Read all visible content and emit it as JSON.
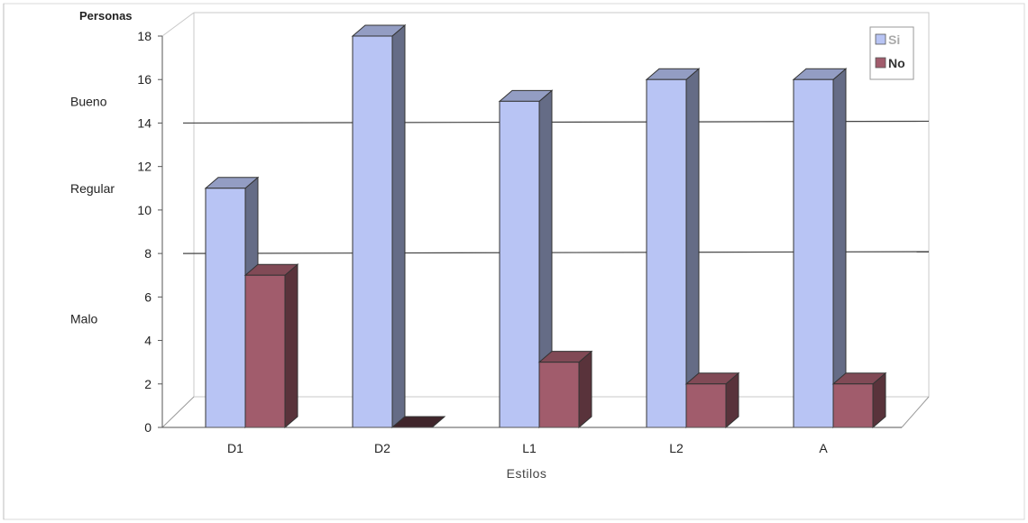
{
  "chart_data": {
    "type": "bar",
    "categories": [
      "D1",
      "D2",
      "L1",
      "L2",
      "A"
    ],
    "series": [
      {
        "name": "Si",
        "values": [
          11,
          18,
          15,
          16,
          16
        ],
        "color": "#b8c4f4"
      },
      {
        "name": "No",
        "values": [
          7,
          0,
          3,
          2,
          2
        ],
        "color": "#a15c6c"
      }
    ],
    "ylabel": "Personas",
    "xlabel": "Estilos",
    "ylim": [
      0,
      18
    ],
    "yticks": [
      0,
      2,
      4,
      6,
      8,
      10,
      12,
      14,
      16,
      18
    ],
    "bands": [
      {
        "label": "Bueno",
        "y": 15
      },
      {
        "label": "Regular",
        "y": 11
      },
      {
        "label": "Malo",
        "y": 5
      }
    ],
    "reference_lines": [
      8,
      14
    ],
    "legend_position": "top-right",
    "projection": "3d"
  }
}
